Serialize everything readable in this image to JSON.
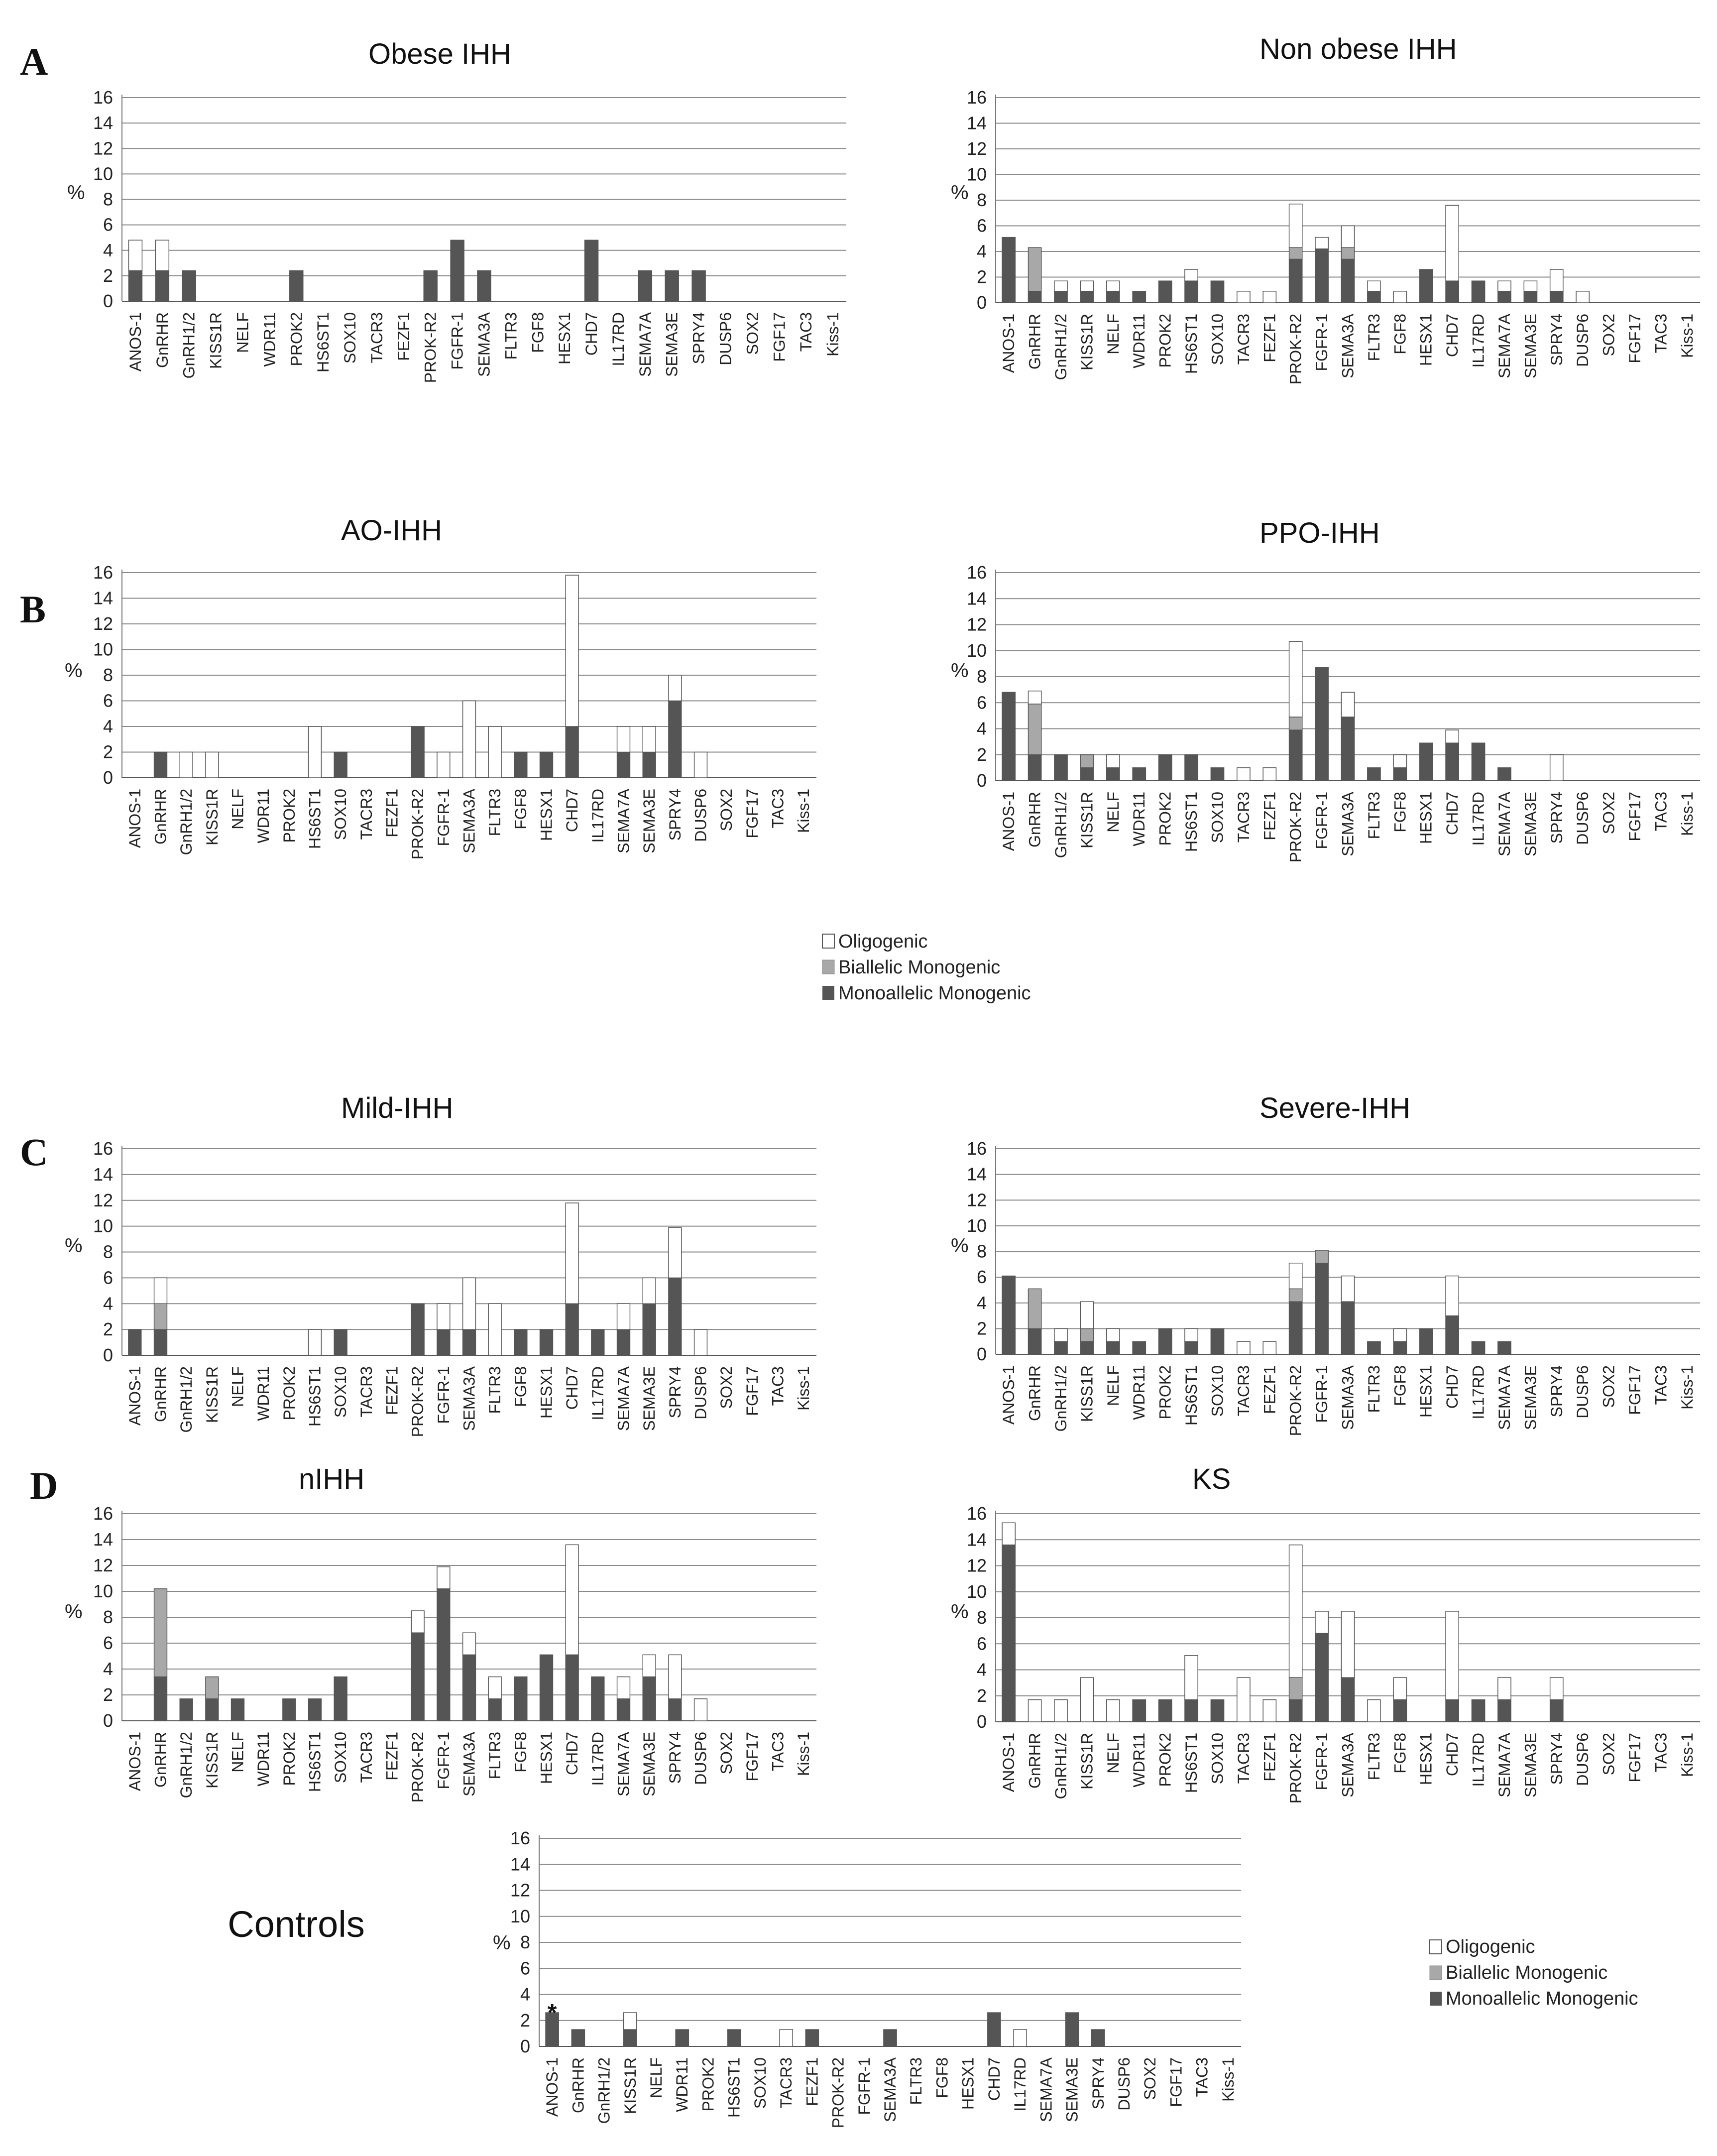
{
  "genes_main": [
    "ANOS-1",
    "GnRHR",
    "GnRH1/2",
    "KISS1R",
    "NELF",
    "WDR11",
    "PROK2",
    "HS6ST1",
    "SOX10",
    "TACR3",
    "FEZF1",
    "PROK-R2",
    "FGFR-1",
    "SEMA3A",
    "FLTR3",
    "FGF8",
    "HESX1",
    "CHD7",
    "IL17RD",
    "SEMA7A",
    "SEMA3E",
    "SPRY4",
    "DUSP6",
    "SOX2",
    "FGF17",
    "TAC3",
    "Kiss-1"
  ],
  "genes_controls": [
    "ANOS-1",
    "GnRHR",
    "GnRH1/2",
    "KISS1R",
    "NELF",
    "WDR11",
    "PROK2",
    "HS6ST1",
    "SOX10",
    "TACR3",
    "FEZF1",
    "PROK-R2",
    "FGFR-1",
    "SEMA3A",
    "FLTR3",
    "FGF8",
    "HESX1",
    "CHD7",
    "IL17RD",
    "SEMA7A",
    "SEMA3E",
    "SPRY4",
    "DUSP6",
    "SOX2",
    "FGF17",
    "TAC3",
    "Kiss-1"
  ],
  "y_axis": {
    "label": "%",
    "ticks": [
      0,
      2,
      4,
      6,
      8,
      10,
      12,
      14,
      16
    ]
  },
  "panel_letters": {
    "A": "A",
    "B": "B",
    "C": "C",
    "D": "D"
  },
  "colors": {
    "oligogenic": "#ffffff",
    "biallelic": "#a8a8a8",
    "monoallelic": "#555555",
    "grid": "#8a8a8a"
  },
  "legend": [
    {
      "key": "oligogenic",
      "label": "Oligogenic"
    },
    {
      "key": "biallelic",
      "label": "Biallelic Monogenic"
    },
    {
      "key": "monoallelic",
      "label": "Monoallelic Monogenic"
    }
  ],
  "annotation": {
    "symbol": "*",
    "gene": "ANOS-1",
    "chart": "Controls"
  },
  "chart_data": [
    {
      "type": "bar",
      "stacked": true,
      "panel": "A",
      "title": "Obese IHH",
      "ylabel": "%",
      "ylim": [
        0,
        16
      ],
      "series": [
        {
          "name": "Monoallelic Monogenic",
          "values": [
            2.4,
            2.4,
            2.4,
            0,
            0,
            0,
            2.4,
            0,
            0,
            0,
            0,
            2.4,
            4.8,
            2.4,
            0,
            0,
            0,
            4.8,
            0,
            2.4,
            2.4,
            2.4,
            0,
            0,
            0,
            0,
            0
          ]
        },
        {
          "name": "Biallelic Monogenic",
          "values": [
            0,
            0,
            0,
            0,
            0,
            0,
            0,
            0,
            0,
            0,
            0,
            0,
            0,
            0,
            0,
            0,
            0,
            0,
            0,
            0,
            0,
            0,
            0,
            0,
            0,
            0,
            0
          ]
        },
        {
          "name": "Oligogenic",
          "values": [
            2.4,
            2.4,
            0,
            0,
            0,
            0,
            0,
            0,
            0,
            0,
            0,
            0,
            0,
            0,
            0,
            0,
            0,
            0,
            0,
            0,
            0,
            0,
            0,
            0,
            0,
            0,
            0
          ]
        }
      ]
    },
    {
      "type": "bar",
      "stacked": true,
      "panel": "A",
      "title": "Non obese IHH",
      "ylabel": "%",
      "ylim": [
        0,
        16
      ],
      "series": [
        {
          "name": "Monoallelic Monogenic",
          "values": [
            5.1,
            0.9,
            0.9,
            0.9,
            0.9,
            0.9,
            1.7,
            1.7,
            1.7,
            0,
            0,
            3.4,
            4.2,
            3.4,
            0.9,
            0,
            2.6,
            1.7,
            1.7,
            0.9,
            0.9,
            0.9,
            0,
            0,
            0,
            0,
            0
          ]
        },
        {
          "name": "Biallelic Monogenic",
          "values": [
            0,
            3.4,
            0,
            0,
            0,
            0,
            0,
            0,
            0,
            0,
            0,
            0.9,
            0,
            0.9,
            0,
            0,
            0,
            0,
            0,
            0,
            0,
            0,
            0,
            0,
            0,
            0,
            0
          ]
        },
        {
          "name": "Oligogenic",
          "values": [
            0,
            0,
            0.8,
            0.8,
            0.8,
            0,
            0,
            0.9,
            0,
            0.9,
            0.9,
            3.4,
            0.9,
            1.7,
            0.8,
            0.9,
            0,
            5.9,
            0,
            0.8,
            0.8,
            1.7,
            0.9,
            0,
            0,
            0,
            0
          ]
        }
      ]
    },
    {
      "type": "bar",
      "stacked": true,
      "panel": "B",
      "title": "AO-IHH",
      "ylabel": "%",
      "ylim": [
        0,
        16
      ],
      "series": [
        {
          "name": "Monoallelic Monogenic",
          "values": [
            0,
            2,
            0,
            0,
            0,
            0,
            0,
            0,
            2,
            0,
            0,
            4,
            0,
            0,
            0,
            2,
            2,
            4,
            0,
            2,
            2,
            6,
            0,
            0,
            0,
            0,
            0
          ]
        },
        {
          "name": "Biallelic Monogenic",
          "values": [
            0,
            0,
            0,
            0,
            0,
            0,
            0,
            0,
            0,
            0,
            0,
            0,
            0,
            0,
            0,
            0,
            0,
            0,
            0,
            0,
            0,
            0,
            0,
            0,
            0,
            0,
            0
          ]
        },
        {
          "name": "Oligogenic",
          "values": [
            0,
            0,
            2,
            2,
            0,
            0,
            0,
            4,
            0,
            0,
            0,
            0,
            2,
            6,
            4,
            0,
            0,
            11.8,
            0,
            2,
            2,
            2,
            2,
            0,
            0,
            0,
            0
          ]
        }
      ]
    },
    {
      "type": "bar",
      "stacked": true,
      "panel": "B",
      "title": "PPO-IHH",
      "ylabel": "%",
      "ylim": [
        0,
        16
      ],
      "series": [
        {
          "name": "Monoallelic Monogenic",
          "values": [
            6.8,
            2,
            2,
            1,
            1,
            1,
            2,
            2,
            1,
            0,
            0,
            3.9,
            8.7,
            4.9,
            1,
            1,
            2.9,
            2.9,
            2.9,
            1,
            0,
            0,
            0,
            0,
            0,
            0,
            0
          ]
        },
        {
          "name": "Biallelic Monogenic",
          "values": [
            0,
            3.9,
            0,
            1,
            0,
            0,
            0,
            0,
            0,
            0,
            0,
            1,
            0,
            0,
            0,
            0,
            0,
            0,
            0,
            0,
            0,
            0,
            0,
            0,
            0,
            0,
            0
          ]
        },
        {
          "name": "Oligogenic",
          "values": [
            0,
            1,
            0,
            0,
            1,
            0,
            0,
            0,
            0,
            1,
            1,
            5.8,
            0,
            1.9,
            0,
            1,
            0,
            1,
            0,
            0,
            0,
            2,
            0,
            0,
            0,
            0,
            0
          ]
        }
      ]
    },
    {
      "type": "bar",
      "stacked": true,
      "panel": "C",
      "title": "Mild-IHH",
      "ylabel": "%",
      "ylim": [
        0,
        16
      ],
      "series": [
        {
          "name": "Monoallelic Monogenic",
          "values": [
            2,
            2,
            0,
            0,
            0,
            0,
            0,
            0,
            2,
            0,
            0,
            4,
            2,
            2,
            0,
            2,
            2,
            4,
            2,
            2,
            4,
            6,
            0,
            0,
            0,
            0,
            0
          ]
        },
        {
          "name": "Biallelic Monogenic",
          "values": [
            0,
            2,
            0,
            0,
            0,
            0,
            0,
            0,
            0,
            0,
            0,
            0,
            0,
            0,
            0,
            0,
            0,
            0,
            0,
            0,
            0,
            0,
            0,
            0,
            0,
            0,
            0
          ]
        },
        {
          "name": "Oligogenic",
          "values": [
            0,
            2,
            0,
            0,
            0,
            0,
            0,
            2,
            0,
            0,
            0,
            0,
            2,
            4,
            4,
            0,
            0,
            7.8,
            0,
            2,
            2,
            3.9,
            2,
            0,
            0,
            0,
            0
          ]
        }
      ]
    },
    {
      "type": "bar",
      "stacked": true,
      "panel": "C",
      "title": "Severe-IHH",
      "ylabel": "%",
      "ylim": [
        0,
        16
      ],
      "series": [
        {
          "name": "Monoallelic Monogenic",
          "values": [
            6.1,
            2,
            1,
            1,
            1,
            1,
            2,
            1,
            2,
            0,
            0,
            4.1,
            7.1,
            4.1,
            1,
            1,
            2,
            3,
            1,
            1,
            0,
            0,
            0,
            0,
            0,
            0,
            0
          ]
        },
        {
          "name": "Biallelic Monogenic",
          "values": [
            0,
            3.1,
            0,
            1,
            0,
            0,
            0,
            0,
            0,
            0,
            0,
            1,
            1,
            0,
            0,
            0,
            0,
            0,
            0,
            0,
            0,
            0,
            0,
            0,
            0,
            0,
            0
          ]
        },
        {
          "name": "Oligogenic",
          "values": [
            0,
            0,
            1,
            2.1,
            1,
            0,
            0,
            1,
            0,
            1,
            1,
            2,
            0,
            2,
            0,
            1,
            0,
            3.1,
            0,
            0,
            0,
            0,
            0,
            0,
            0,
            0,
            0
          ]
        }
      ]
    },
    {
      "type": "bar",
      "stacked": true,
      "panel": "D",
      "title": "nIHH",
      "ylabel": "%",
      "ylim": [
        0,
        16
      ],
      "series": [
        {
          "name": "Monoallelic Monogenic",
          "values": [
            0,
            3.4,
            1.7,
            1.7,
            1.7,
            0,
            1.7,
            1.7,
            3.4,
            0,
            0,
            6.8,
            10.2,
            5.1,
            1.7,
            3.4,
            5.1,
            5.1,
            3.4,
            1.7,
            3.4,
            1.7,
            0,
            0,
            0,
            0,
            0
          ]
        },
        {
          "name": "Biallelic Monogenic",
          "values": [
            0,
            6.8,
            0,
            1.7,
            0,
            0,
            0,
            0,
            0,
            0,
            0,
            0,
            0,
            0,
            0,
            0,
            0,
            0,
            0,
            0,
            0,
            0,
            0,
            0,
            0,
            0,
            0
          ]
        },
        {
          "name": "Oligogenic",
          "values": [
            0,
            0,
            0,
            0,
            0,
            0,
            0,
            0,
            0,
            0,
            0,
            1.7,
            1.7,
            1.7,
            1.7,
            0,
            0,
            8.5,
            0,
            1.7,
            1.7,
            3.4,
            1.7,
            0,
            0,
            0,
            0
          ]
        }
      ]
    },
    {
      "type": "bar",
      "stacked": true,
      "panel": "D",
      "title": "KS",
      "ylabel": "%",
      "ylim": [
        0,
        16
      ],
      "series": [
        {
          "name": "Monoallelic Monogenic",
          "values": [
            13.6,
            0,
            0,
            0,
            0,
            1.7,
            1.7,
            1.7,
            1.7,
            0,
            0,
            1.7,
            6.8,
            3.4,
            0,
            1.7,
            0,
            1.7,
            1.7,
            1.7,
            0,
            1.7,
            0,
            0,
            0,
            0,
            0
          ]
        },
        {
          "name": "Biallelic Monogenic",
          "values": [
            0,
            0,
            0,
            0,
            0,
            0,
            0,
            0,
            0,
            0,
            0,
            1.7,
            0,
            0,
            0,
            0,
            0,
            0,
            0,
            0,
            0,
            0,
            0,
            0,
            0,
            0,
            0
          ]
        },
        {
          "name": "Oligogenic",
          "values": [
            1.7,
            1.7,
            1.7,
            3.4,
            1.7,
            0,
            0,
            3.4,
            0,
            3.4,
            1.7,
            10.2,
            1.7,
            5.1,
            1.7,
            1.7,
            0,
            6.8,
            0,
            1.7,
            0,
            1.7,
            0,
            0,
            0,
            0,
            0
          ]
        }
      ]
    },
    {
      "type": "bar",
      "stacked": true,
      "panel": "",
      "title": "Controls",
      "ylabel": "%",
      "ylim": [
        0,
        16
      ],
      "series": [
        {
          "name": "Monoallelic Monogenic",
          "values": [
            2.6,
            1.3,
            0,
            1.3,
            0,
            1.3,
            0,
            1.3,
            0,
            0,
            1.3,
            0,
            0,
            1.3,
            0,
            0,
            0,
            2.6,
            0,
            0,
            2.6,
            1.3,
            0,
            0,
            0,
            0,
            0
          ]
        },
        {
          "name": "Biallelic Monogenic",
          "values": [
            0,
            0,
            0,
            0,
            0,
            0,
            0,
            0,
            0,
            0,
            0,
            0,
            0,
            0,
            0,
            0,
            0,
            0,
            0,
            0,
            0,
            0,
            0,
            0,
            0,
            0,
            0
          ]
        },
        {
          "name": "Oligogenic",
          "values": [
            0,
            0,
            0,
            1.3,
            0,
            0,
            0,
            0,
            0,
            1.3,
            0,
            0,
            0,
            0,
            0,
            0,
            0,
            0,
            1.3,
            0,
            0,
            0,
            0,
            0,
            0,
            0,
            0
          ]
        }
      ]
    }
  ]
}
